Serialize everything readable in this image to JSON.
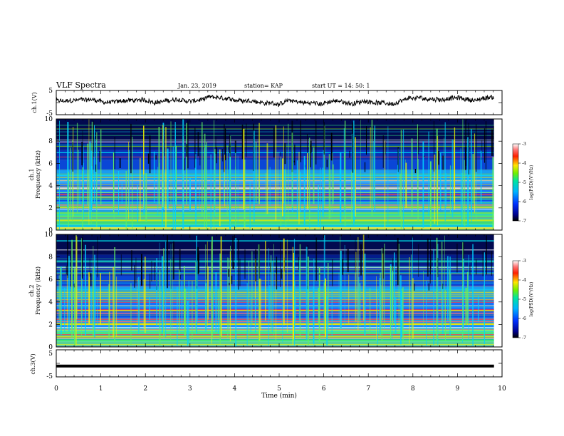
{
  "header": {
    "title": "VLF Spectra",
    "date": "Jan. 23, 2019",
    "station": "station= KAP",
    "start": "start  UT =   14: 50: 1"
  },
  "chart_data": [
    {
      "type": "line",
      "panel": "ch1-waveform",
      "ylabel": "ch.1(V)",
      "ylim": [
        -5,
        5
      ],
      "yticks": [
        "5",
        "-5"
      ],
      "xlim": [
        0,
        10
      ],
      "x_end": 9.82,
      "description_values": "noisy waveform oscillating roughly between -2 and +2.5 V",
      "color": "#000000"
    },
    {
      "type": "heatmap",
      "panel": "ch1-spectrogram",
      "ylabel": "ch.1\nFrequency (kHz)",
      "ylabel_lines": [
        "ch.1",
        "Frequency (kHz)"
      ],
      "ylim": [
        0,
        10
      ],
      "yticks": [
        "0",
        "2",
        "4",
        "6",
        "8",
        "10"
      ],
      "xlim": [
        0,
        10
      ],
      "colorbar": {
        "label": "log(PSD)(V²/Hz)",
        "range": [
          -7,
          -3
        ],
        "ticks": [
          "-3",
          "-4",
          "-5",
          "-6",
          "-7"
        ]
      }
    },
    {
      "type": "heatmap",
      "panel": "ch2-spectrogram",
      "ylabel_lines": [
        "ch.2",
        "Frequency (kHz)"
      ],
      "ylim": [
        0,
        10
      ],
      "yticks": [
        "0",
        "2",
        "4",
        "6",
        "8",
        "10"
      ],
      "xlim": [
        0,
        10
      ],
      "colorbar": {
        "label": "log(PSD)(V²/Hz)",
        "range": [
          -7,
          -3
        ],
        "ticks": [
          "-3",
          "-4",
          "-5",
          "-6",
          "-7"
        ]
      }
    },
    {
      "type": "line",
      "panel": "ch3-waveform",
      "ylabel": "ch.3(V)",
      "ylim": [
        -5,
        5
      ],
      "yticks": [
        "5",
        "-5"
      ],
      "xlim": [
        0,
        10
      ],
      "constant_value": -1.0,
      "color": "#000000"
    }
  ],
  "xaxis": {
    "label": "Time (min)",
    "ticks": [
      "0",
      "1",
      "2",
      "3",
      "4",
      "5",
      "6",
      "7",
      "8",
      "9",
      "10"
    ]
  },
  "colorbar_label": "log(PSD)(V²/Hz)",
  "ylabels": {
    "ch1_wave": "ch.1(V)",
    "ch1_spec_a": "ch.1",
    "ch1_spec_b": "Frequency (kHz)",
    "ch2_spec_a": "ch.2",
    "ch2_spec_b": "Frequency (kHz)",
    "ch3_wave": "ch.3(V)"
  },
  "colors": {
    "deep_blue": "#0000a0",
    "blue": "#1a5cff",
    "cyan": "#00c8e6",
    "green": "#33e080",
    "yellow": "#f5e600",
    "red": "#ff2020"
  }
}
